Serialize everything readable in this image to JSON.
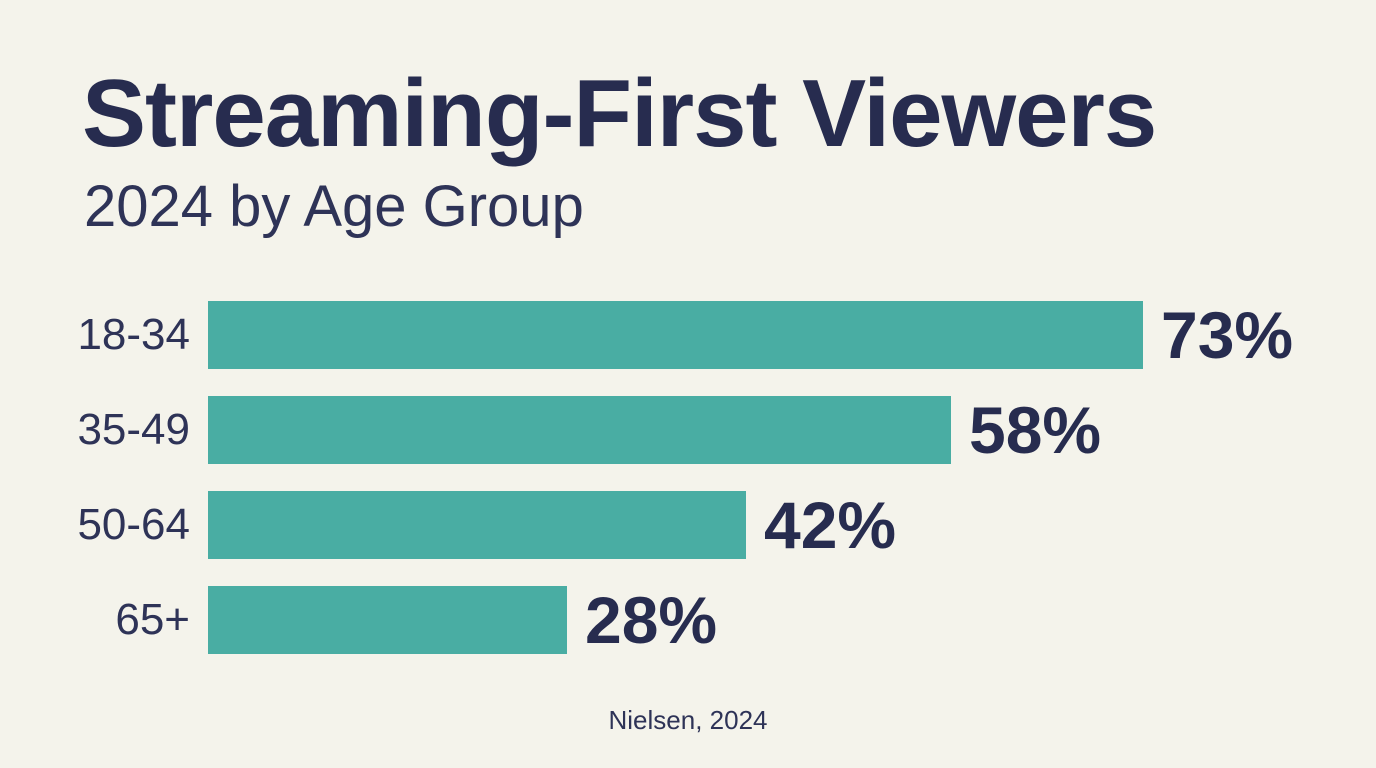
{
  "page": {
    "background_color": "#f4f3eb"
  },
  "header": {
    "title": "Streaming-First Viewers",
    "subtitle": "2024 by Age Group"
  },
  "chart_data": {
    "type": "bar",
    "orientation": "horizontal",
    "title": "Streaming-First Viewers",
    "subtitle": "2024 by Age Group",
    "categories": [
      "18-34",
      "35-49",
      "50-64",
      "65+"
    ],
    "values": [
      73,
      58,
      42,
      28
    ],
    "value_labels": [
      "73%",
      "58%",
      "42%",
      "28%"
    ],
    "xlim": [
      0,
      100
    ],
    "grid": false,
    "legend": false,
    "bar_color": "#49ada3",
    "text_color": "#272c4f",
    "background_color": "#f4f3eb",
    "source": "Nielsen, 2024"
  },
  "footer": {
    "source": "Nielsen, 2024"
  }
}
